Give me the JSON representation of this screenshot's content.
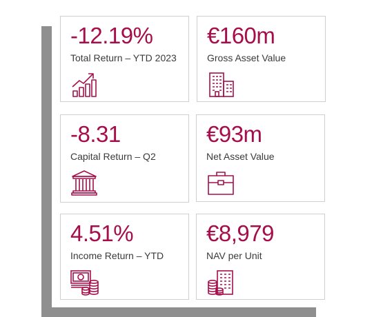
{
  "accent_color": "#a50e4a",
  "cards": [
    {
      "value": "-12.19%",
      "label": "Total Return – YTD 2023",
      "icon": "growth-chart-icon"
    },
    {
      "value": "€160m",
      "label": "Gross Asset Value",
      "icon": "office-buildings-icon"
    },
    {
      "value": "-8.31",
      "label": "Capital Return – Q2",
      "icon": "bank-building-icon"
    },
    {
      "value": "€93m",
      "label": "Net Asset Value",
      "icon": "briefcase-icon"
    },
    {
      "value": "4.51%",
      "label": "Income Return – YTD",
      "icon": "cash-coins-icon"
    },
    {
      "value": "€8,979",
      "label": "NAV per Unit",
      "icon": "building-coins-icon"
    }
  ]
}
